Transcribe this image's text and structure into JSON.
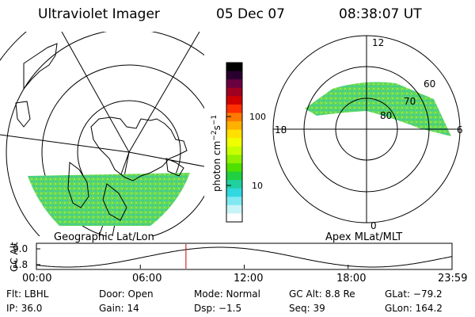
{
  "header": {
    "instrument": "Ultraviolet Imager",
    "date": "05 Dec 07",
    "time": "08:38:07 UT"
  },
  "left_panel": {
    "caption": "Geographic Lat/Lon"
  },
  "right_panel": {
    "caption": "Apex MLat/MLT",
    "mlt_labels": {
      "top": "12",
      "left": "18",
      "right": "6",
      "bottom": "0"
    },
    "lat_labels": [
      "60",
      "70",
      "80"
    ]
  },
  "colorbar": {
    "unit_main": "photon cm",
    "unit_exp1": "−2",
    "unit_mid": "s",
    "unit_exp2": "−1",
    "ticks": [
      "100",
      "10"
    ],
    "colors": [
      "#000000",
      "#2a0030",
      "#6a0040",
      "#a00020",
      "#d00000",
      "#ff3000",
      "#ff7a00",
      "#ffb000",
      "#ffe000",
      "#f0ff00",
      "#c8ff00",
      "#90f000",
      "#50e000",
      "#20d040",
      "#20d0a0",
      "#30d8e0",
      "#80e8f0",
      "#c8f4f8",
      "#ffffff"
    ]
  },
  "timeline": {
    "ylabel": "GC Alt",
    "y_ticks": [
      "9.0",
      "1.8"
    ],
    "x_ticks": [
      "00:00",
      "06:00",
      "12:00",
      "18:00",
      "23:59"
    ],
    "marker_hour": 8.635,
    "marker_color": "#cc0000"
  },
  "footer": {
    "filter": "Flt: LBHL",
    "door": "Door: Open",
    "mode": "Mode: Normal",
    "gc_alt": "GC Alt: 8.8 Re",
    "glat": "GLat: −79.2",
    "ip": "IP: 36.0",
    "gain": "Gain: 14",
    "dsp": "Dsp:   −1.5",
    "seq": "Seq: 39",
    "glon": "GLon: 164.2"
  }
}
